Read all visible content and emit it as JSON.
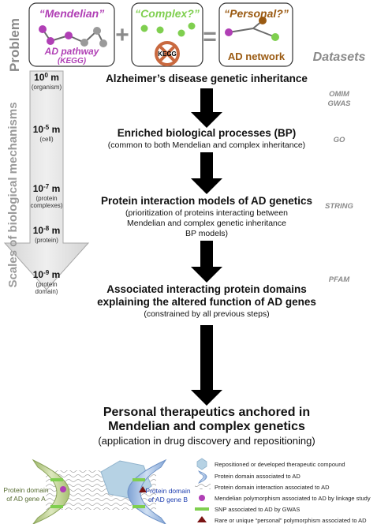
{
  "problem_label": "Problem",
  "datasets_label": "Datasets",
  "side_label": "Scales of biological mechanisms",
  "boxes": {
    "mendelian": {
      "title": "“Mendelian”",
      "line1": "AD pathway",
      "line2": "(KEGG)"
    },
    "complex": {
      "title": "“Complex?”",
      "badge": "KEGG"
    },
    "personal": {
      "title": "“Personal?”",
      "line1": "AD network"
    }
  },
  "operators": {
    "plus": "+",
    "equals": "="
  },
  "scales": [
    {
      "base": "10",
      "exp": "0",
      "unit": " m",
      "desc1": "(organism)",
      "desc2": ""
    },
    {
      "base": "10",
      "exp": "-5",
      "unit": " m",
      "desc1": "(cell)",
      "desc2": ""
    },
    {
      "base": "10",
      "exp": "-7",
      "unit": " m",
      "desc1": "(protein",
      "desc2": "complexes)"
    },
    {
      "base": "10",
      "exp": "-8",
      "unit": " m",
      "desc1": "(protein)",
      "desc2": ""
    },
    {
      "base": "10",
      "exp": "-9",
      "unit": " m",
      "desc1": "(protein",
      "desc2": "domain)"
    }
  ],
  "steps": [
    {
      "title": "Alzheimer’s disease genetic inheritance",
      "sub1": "",
      "sub2": "",
      "sub3": ""
    },
    {
      "title": "Enriched biological processes (BP)",
      "sub1": "(common to both Mendelian and complex inheritance)",
      "sub2": "",
      "sub3": ""
    },
    {
      "title": "Protein interaction models of AD genetics",
      "sub1": "(prioritization of proteins interacting between",
      "sub2": "Mendelian and complex genetic inheritance",
      "sub3": "BP models)"
    },
    {
      "title": "Associated interacting protein domains",
      "title2": "explaining the altered function of AD genes",
      "sub1": "(constrained by all previous steps)"
    }
  ],
  "datasets": [
    {
      "line1": "OMIM",
      "line2": "GWAS"
    },
    {
      "line1": "GO",
      "line2": ""
    },
    {
      "line1": "STRING",
      "line2": ""
    },
    {
      "line1": "PFAM",
      "line2": ""
    }
  ],
  "final": {
    "line1": "Personal therapeutics anchored in",
    "line2": "Mendelian and complex genetics",
    "line3": "(application in drug discovery and repositioning)"
  },
  "illustration": {
    "domain_a1": "Protein domain",
    "domain_a2": "of AD gene A",
    "domain_b1": "Protein domain",
    "domain_b2": "of AD gene B"
  },
  "legend": [
    {
      "icon": "hexagon-icon",
      "text": "Repositioned or developed therapeutic compound"
    },
    {
      "icon": "protein-domain-icon",
      "text": "Protein domain associated to AD"
    },
    {
      "icon": "wavy-lines-icon",
      "text": "Protein domain interaction associated to AD"
    },
    {
      "icon": "purple-circle-icon",
      "text": "Mendelian polymorphism associated to AD by linkage study"
    },
    {
      "icon": "green-bar-icon",
      "text": "SNP associated to AD by GWAS"
    },
    {
      "icon": "red-triangle-icon",
      "text": "Rare or unique “personal” polymorphism  associated to AD"
    }
  ],
  "colors": {
    "purple": "#b03fb5",
    "green": "#7fcf4f",
    "brown": "#9a5a12",
    "gray_node": "#9a9a9a",
    "label_gray": "#8a8a8a",
    "kegg_red": "#c9693f",
    "domain_a": "#c6d8a0",
    "domain_b": "#a9c3e6",
    "hex_fill": "#b6d2e4"
  }
}
